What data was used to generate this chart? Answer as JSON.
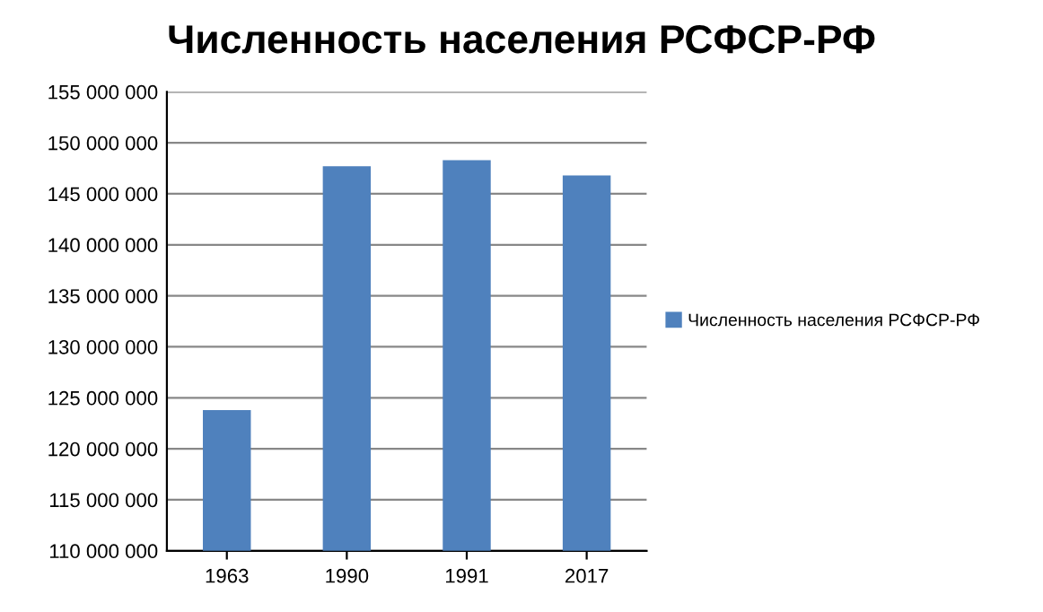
{
  "chart_data": {
    "type": "bar",
    "title": "Численность населения РСФСР-РФ",
    "categories": [
      "1963",
      "1990",
      "1991",
      "2017"
    ],
    "series": [
      {
        "name": "Численность населения РСФСР-РФ",
        "color": "#4f81bd",
        "values": [
          123800000,
          147700000,
          148300000,
          146800000
        ]
      }
    ],
    "ylim": [
      110000000,
      155000000
    ],
    "yticks": [
      {
        "value": 110000000,
        "label": "110 000 000"
      },
      {
        "value": 115000000,
        "label": "115 000 000"
      },
      {
        "value": 120000000,
        "label": "120 000 000"
      },
      {
        "value": 125000000,
        "label": "125 000 000"
      },
      {
        "value": 130000000,
        "label": "130 000 000"
      },
      {
        "value": 135000000,
        "label": "135 000 000"
      },
      {
        "value": 140000000,
        "label": "140 000 000"
      },
      {
        "value": 145000000,
        "label": "145 000 000"
      },
      {
        "value": 150000000,
        "label": "150 000 000"
      },
      {
        "value": 155000000,
        "label": "155 000 000"
      }
    ],
    "grid": "y",
    "legend": "right"
  }
}
